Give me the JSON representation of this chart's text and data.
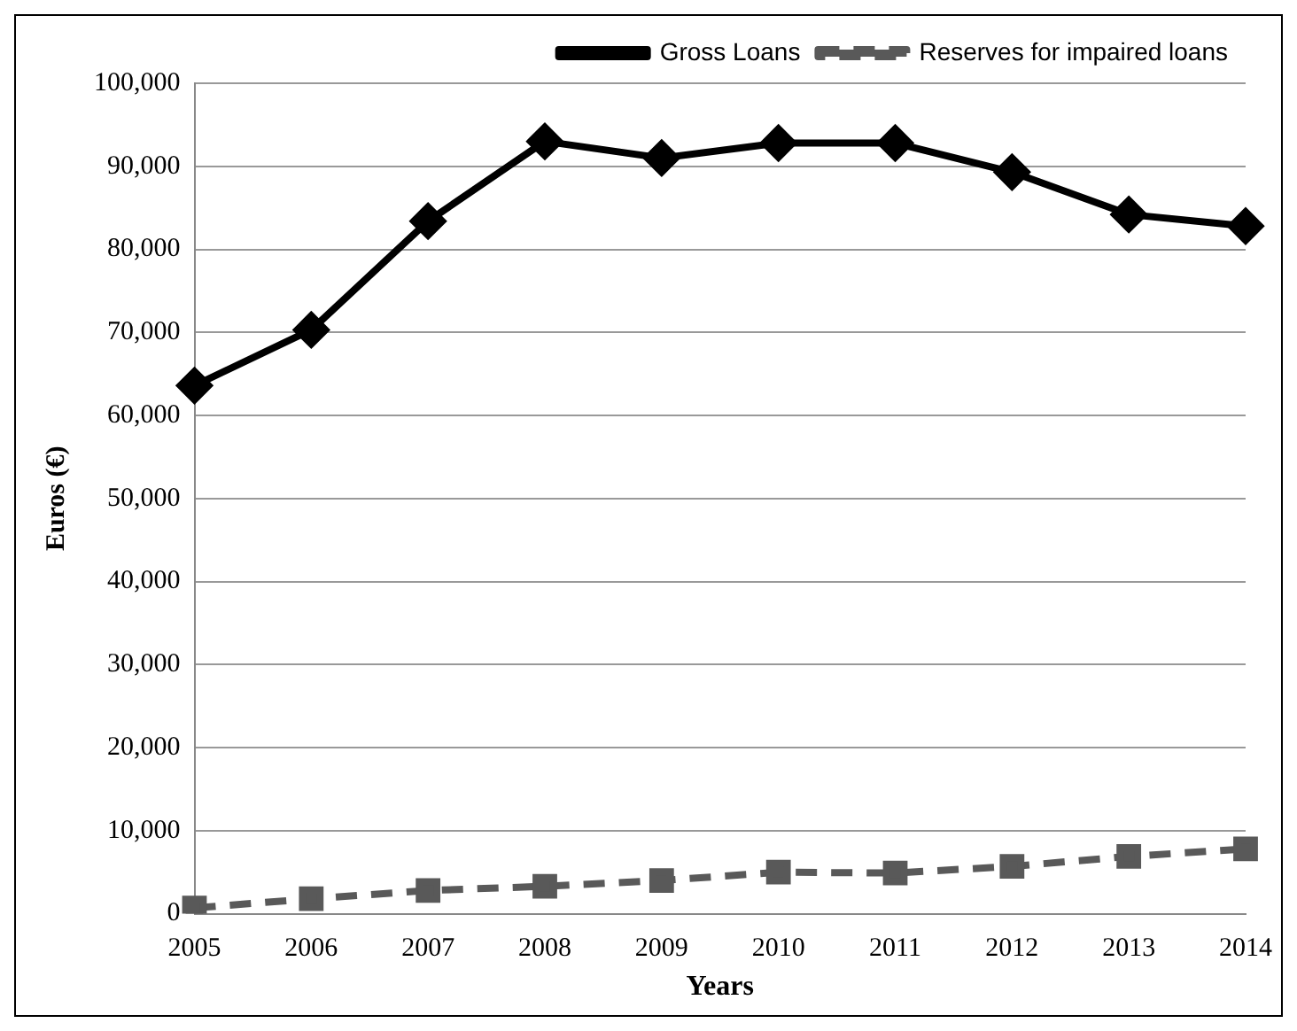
{
  "chart_data": {
    "type": "line",
    "xlabel": "Years",
    "ylabel": "Euros (€)",
    "categories": [
      "2005",
      "2006",
      "2007",
      "2008",
      "2009",
      "2010",
      "2011",
      "2012",
      "2013",
      "2014"
    ],
    "series": [
      {
        "name": "Gross Loans",
        "color": "#000000",
        "marker": "diamond",
        "line_style": "solid",
        "values": [
          63600,
          70300,
          83400,
          93000,
          91000,
          92800,
          92800,
          89300,
          84200,
          82800
        ]
      },
      {
        "name": "Reserves for impaired loans",
        "color": "#595959",
        "marker": "square",
        "line_style": "dashed",
        "values": [
          700,
          1800,
          2800,
          3300,
          4000,
          5000,
          4900,
          5700,
          6900,
          7800
        ]
      }
    ],
    "ylim": [
      0,
      100000
    ],
    "yticks": [
      0,
      {
        "value": 10000,
        "label": "10,000"
      },
      {
        "value": 20000,
        "label": "20,000"
      },
      {
        "value": 30000,
        "label": "30,000"
      },
      {
        "value": 40000,
        "label": "40,000"
      },
      {
        "value": 50000,
        "label": "50,000"
      },
      {
        "value": 60000,
        "label": "60,000"
      },
      {
        "value": 70000,
        "label": "70,000"
      },
      {
        "value": 80000,
        "label": "80,000"
      },
      {
        "value": 90000,
        "label": "90,000"
      },
      {
        "value": 100000,
        "label": "100,000"
      }
    ],
    "grid": "y",
    "legend": "top"
  }
}
